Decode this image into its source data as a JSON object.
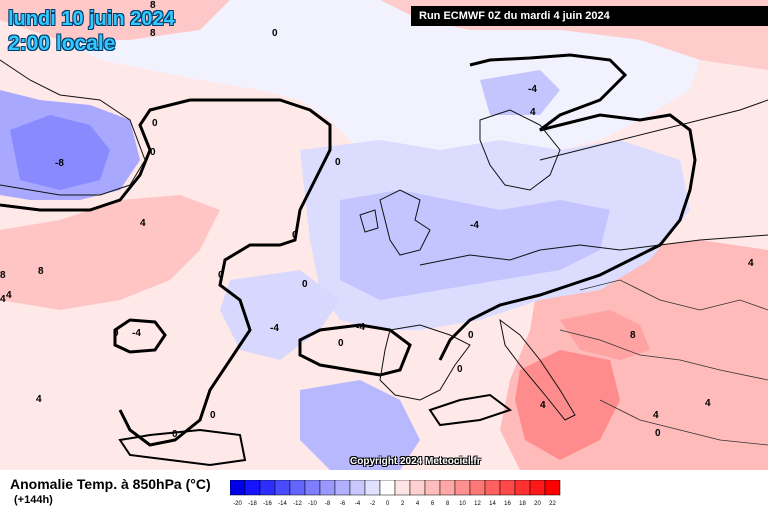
{
  "header": {
    "date": "lundi 10 juin 2024",
    "time": "2:00 locale",
    "run": "Run ECMWF 0Z du mardi 4 juin 2024"
  },
  "footer": {
    "variable": "Anomalie Temp. à 850hPa (°C)",
    "lead": "(+144h)",
    "copyright": "Copyright 2024 Meteociel.fr"
  },
  "legend": {
    "ticks": [
      "-20",
      "-18",
      "-16",
      "-14",
      "-12",
      "-10",
      "-8",
      "-6",
      "-4",
      "-2",
      "0",
      "2",
      "4",
      "6",
      "8",
      "10",
      "12",
      "14",
      "16",
      "18",
      "20",
      "22"
    ],
    "colors": [
      "#0000e6",
      "#1414ff",
      "#2d2dff",
      "#4a4aff",
      "#6464ff",
      "#7e7eff",
      "#9898ff",
      "#b0b0ff",
      "#c8c8ff",
      "#e0e0ff",
      "#ffffff",
      "#ffe4e4",
      "#ffd0d0",
      "#ffbcbc",
      "#ffa6a6",
      "#ff9090",
      "#ff7878",
      "#ff6060",
      "#ff4848",
      "#ff3030",
      "#ff1818",
      "#ff0000"
    ]
  },
  "map": {
    "contour_labels": [
      "8",
      "8",
      "0",
      "0",
      "-8",
      "0",
      "0",
      "-4",
      "4",
      "4",
      "0",
      "0",
      "0",
      "0",
      "-4",
      "-4",
      "-4",
      "0",
      "0",
      "0",
      "4",
      "4",
      "4",
      "8",
      "8",
      "4",
      "8",
      "4",
      "4",
      "4",
      "0",
      "0",
      "0",
      "-4"
    ]
  }
}
